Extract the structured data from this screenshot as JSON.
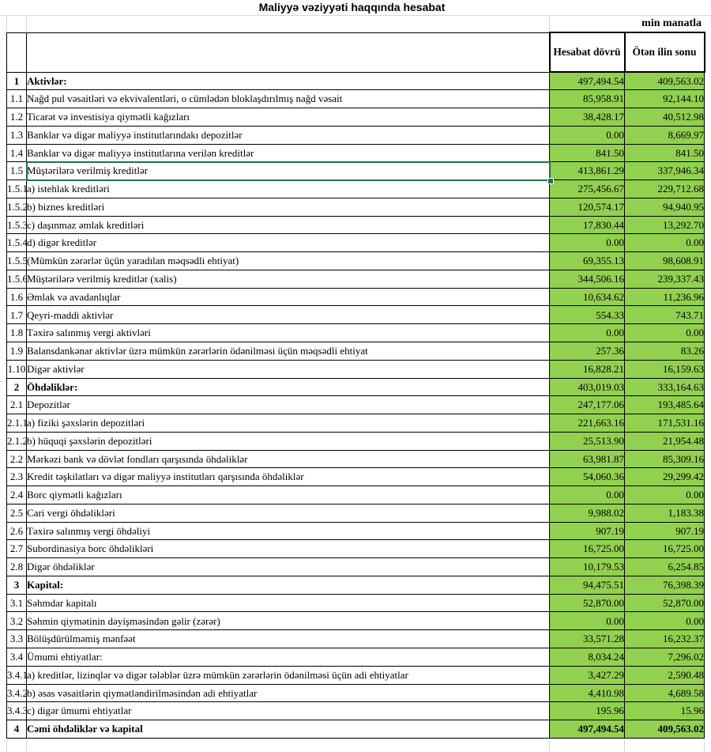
{
  "title": "Maliyyə vəziyyəti haqqında hesabat",
  "unit_label": "min manatla",
  "columns": {
    "period": "Hesabat dövrü",
    "prior": "Ötən ilin sonu"
  },
  "selection": {
    "row_no": "1.5",
    "column": "label"
  },
  "colors": {
    "value_cell_fill": "#92D050",
    "selection_border": "#217346",
    "gridline": "#D6D6D6",
    "grid_border": "#000000"
  },
  "rows": [
    {
      "no": "1",
      "label": "Aktivlər:",
      "period": "497,494.54",
      "prior": "409,563.02",
      "section": true
    },
    {
      "no": "1.1",
      "label": "Nağd pul vəsaitləri və  ekvivalentləri, o cümlədən bloklaşdırılmış nağd vəsait",
      "period": "85,958.91",
      "prior": "92,144.10"
    },
    {
      "no": "1.2",
      "label": "Ticarət və investisiya qiymətli kağızları",
      "period": "38,428.17",
      "prior": "40,512.98"
    },
    {
      "no": "1.3",
      "label": "Banklar və digər maliyyə institutlarındakı depozitlər",
      "period": "0.00",
      "prior": "8,669.97"
    },
    {
      "no": "1.4",
      "label": "Banklar və digər maliyyə institutlarına verilən kreditlər",
      "period": "841.50",
      "prior": "841.50"
    },
    {
      "no": "1.5",
      "label": "Müştərilərə verilmiş kreditlər",
      "period": "413,861.29",
      "prior": "337,946.34"
    },
    {
      "no": "1.5.1",
      "label": "a) istehlak kreditləri",
      "period": "275,456.67",
      "prior": "229,712.68"
    },
    {
      "no": "1.5.2",
      "label": "b) biznes kreditləri",
      "period": "120,574.17",
      "prior": "94,940.95"
    },
    {
      "no": "1.5.3",
      "label": "c) daşınmaz əmlak kreditləri",
      "period": "17,830.44",
      "prior": "13,292.70"
    },
    {
      "no": "1.5.4",
      "label": "d) digər kreditlər",
      "period": "0.00",
      "prior": "0.00"
    },
    {
      "no": "1.5.5",
      "label": "(Mümkün zərərlər üçün yaradılan məqsədli ehtiyat)",
      "period": "69,355.13",
      "prior": "98,608.91"
    },
    {
      "no": "1.5.6",
      "label": "Müştərilərə verilmiş kreditlər (xalis)",
      "period": "344,506.16",
      "prior": "239,337.43"
    },
    {
      "no": "1.6",
      "label": "Əmlak və avadanlıqlar",
      "period": "10,634.62",
      "prior": "11,236.96"
    },
    {
      "no": "1.7",
      "label": "Qeyri-maddi aktivlər",
      "period": "554.33",
      "prior": "743.71"
    },
    {
      "no": "1.8",
      "label": "Təxirə salınmış vergi aktivləri",
      "period": "0.00",
      "prior": "0.00"
    },
    {
      "no": "1.9",
      "label": "Balansdankənar aktivlər üzrə mümkün zərərlərin ödənilməsi üçün məqsədli ehtiyat",
      "period": "257.36",
      "prior": "83.26"
    },
    {
      "no": "1.10",
      "label": "Digər aktivlər",
      "period": "16,828.21",
      "prior": "16,159.63"
    },
    {
      "no": "2",
      "label": "Öhdəliklər:",
      "period": "403,019.03",
      "prior": "333,164.63",
      "section": true
    },
    {
      "no": "2.1",
      "label": "Depozitlər",
      "period": "247,177.06",
      "prior": "193,485.64"
    },
    {
      "no": "2.1.1",
      "label": "a) fiziki şəxslərin depozitləri",
      "period": "221,663.16",
      "prior": "171,531.16"
    },
    {
      "no": "2.1.2",
      "label": "b) hüquqi şəxslərin depozitləri",
      "period": "25,513.90",
      "prior": "21,954.48"
    },
    {
      "no": "2.2",
      "label": "Mərkəzi bank və dövlət fondları qarşısında öhdəliklər",
      "period": "63,981.87",
      "prior": "85,309.16"
    },
    {
      "no": "2.3",
      "label": "Kredit təşkilatları və digər maliyyə institutları qarşısında öhdəliklər",
      "period": "54,060.36",
      "prior": "29,299.42"
    },
    {
      "no": "2.4",
      "label": "Borc qiymətli kağızları",
      "period": "0.00",
      "prior": "0.00"
    },
    {
      "no": "2.5",
      "label": "Cari vergi öhdəlikləri",
      "period": "9,988.02",
      "prior": "1,183.38"
    },
    {
      "no": "2.6",
      "label": "Təxirə salınmış vergi öhdəliyi",
      "period": "907.19",
      "prior": "907.19"
    },
    {
      "no": "2.7",
      "label": "Subordinasiya borc öhdəlikləri",
      "period": "16,725.00",
      "prior": "16,725.00"
    },
    {
      "no": "2.8",
      "label": "Digər öhdəliklər",
      "period": "10,179.53",
      "prior": "6,254.85"
    },
    {
      "no": "3",
      "label": "Kapital:",
      "period": "94,475.51",
      "prior": "76,398.39",
      "section": true
    },
    {
      "no": "3.1",
      "label": "Səhmdar kapitalı",
      "period": "52,870.00",
      "prior": "52,870.00"
    },
    {
      "no": "3.2",
      "label": "Səhmin qiymətinin dəyişməsindən gəlir (zərər)",
      "period": "0.00",
      "prior": "0.00"
    },
    {
      "no": "3.3",
      "label": "Bölüşdürülməmiş mənfəət",
      "period": "33,571.28",
      "prior": "16,232.37"
    },
    {
      "no": "3.4",
      "label": "Ümumi ehtiyatlar:",
      "period": "8,034.24",
      "prior": "7,296.02"
    },
    {
      "no": "3.4.1",
      "label": "a) kreditlər, lizinqlər və digər tələblər üzrə mümkün zərərlərin ödənilməsi üçün adi ehtiyatlar",
      "period": "3,427.29",
      "prior": "2,590.48"
    },
    {
      "no": "3.4.2",
      "label": "b) əsas vəsaitlərin qiymətləndirilməsindən adi ehtiyatlar",
      "period": "4,410.98",
      "prior": "4,689.58"
    },
    {
      "no": "3.4.3",
      "label": "c) digər ümumi ehtiyatlar",
      "period": "195.96",
      "prior": "15.96"
    },
    {
      "no": "4",
      "label": "Cəmi öhdəliklər və kapital",
      "period": "497,494.54",
      "prior": "409,563.02",
      "total": true
    }
  ]
}
